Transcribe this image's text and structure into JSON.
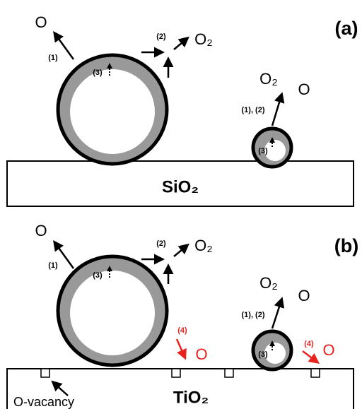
{
  "panel_a": {
    "label": "(a)",
    "substrate": "SiO₂",
    "large_particle": {
      "step1": "(1)",
      "product1": "O",
      "step2": "(2)",
      "product2": "O₂",
      "step3": "(3)"
    },
    "small_particle": {
      "steps": "(1), (2)",
      "product1": "O₂",
      "product2": "O",
      "step3": "(3)"
    }
  },
  "panel_b": {
    "label": "(b)",
    "substrate": "TiO₂",
    "vacancy_label": "O-vacancy",
    "large_particle": {
      "step1": "(1)",
      "product1": "O",
      "step2": "(2)",
      "product2": "O₂",
      "step3": "(3)",
      "step4": "(4)",
      "product4": "O"
    },
    "small_particle": {
      "steps": "(1), (2)",
      "product1": "O₂",
      "product2": "O",
      "step3": "(3)",
      "step4": "(4)",
      "product4": "O"
    }
  }
}
